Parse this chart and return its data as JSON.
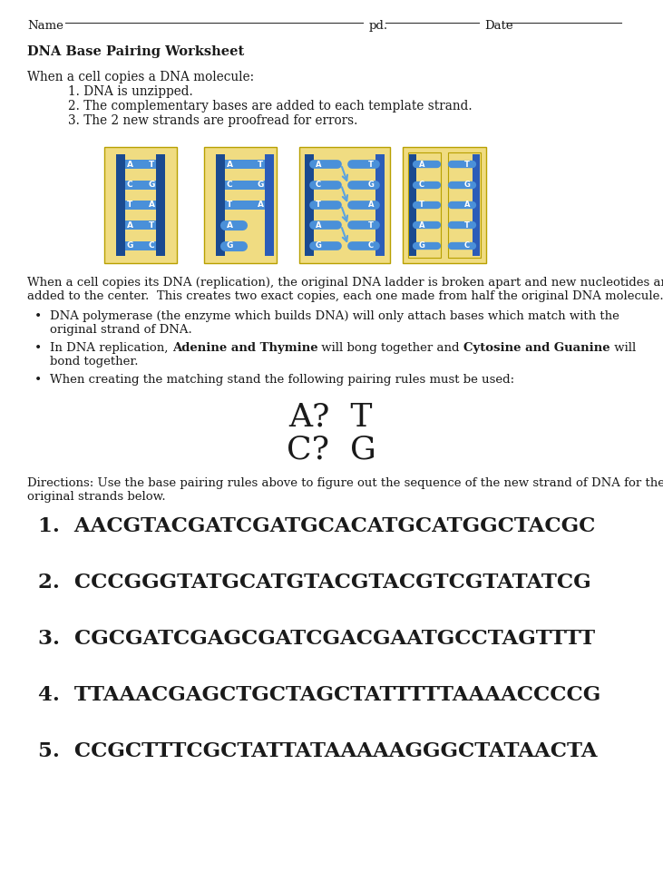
{
  "title": "DNA Base Pairing Worksheet",
  "intro_text": "When a cell copies a DNA molecule:",
  "steps": [
    "1. DNA is unzipped.",
    "2. The complementary bases are added to each template strand.",
    "3. The 2 new strands are proofread for errors."
  ],
  "body_text1": "When a cell copies its DNA (replication), the original DNA ladder is broken apart and new nucleotides are",
  "body_text2": "added to the center.  This creates two exact copies, each one made from half the original DNA molecule.",
  "bullet1_line1": "DNA polymerase (the enzyme which builds DNA) will only attach bases which match with the",
  "bullet1_line2": "original strand of DNA.",
  "bullet2_pre": "In DNA replication, ",
  "bullet2_bold1": "Adenine and Thymine",
  "bullet2_mid": " will bong together and ",
  "bullet2_bold2": "Cytosine and Guanine",
  "bullet2_post": " will",
  "bullet2_line2": "bond together.",
  "bullet3": "When creating the matching stand the following pairing rules must be used:",
  "pairing1": "A?  T",
  "pairing2": "C?  G",
  "directions1": "Directions: Use the base pairing rules above to figure out the sequence of the new strand of DNA for the",
  "directions2": "original strands below.",
  "questions": [
    "1.  AACGTACGATCGATGCACATGCATGGCTACGC",
    "2.  CCCGGGTATGCATGTACGTACGTCGTATATCG",
    "3.  CGCGATCGAGCGATCGACGAATGCCTAGTTTT",
    "4.  TTAAACGAGCTGCTAGCTATTTTTAAAACCCCG",
    "5.  CCGCTTTCGCTATTATAAAAAGGGCTATAACTA"
  ],
  "bg_color": "#FFFFFF",
  "text_color": "#1a1a1a",
  "dna_bg_color": "#F0DC82",
  "dna_blue_dark": "#1A4A90",
  "dna_blue_mid": "#2B5CB8",
  "dna_blue_light": "#4A90D9",
  "dna_arrow_color": "#5BA3E0"
}
